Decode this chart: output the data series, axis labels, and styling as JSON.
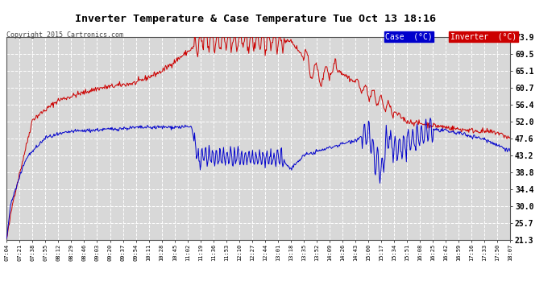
{
  "title": "Inverter Temperature & Case Temperature Tue Oct 13 18:16",
  "copyright": "Copyright 2015 Cartronics.com",
  "legend_case_label": "Case  (°C)",
  "legend_inv_label": "Inverter  (°C)",
  "case_color": "#0000cc",
  "inv_color": "#cc0000",
  "bg_color": "#ffffff",
  "plot_bg_color": "#d8d8d8",
  "grid_color": "#ffffff",
  "ylim": [
    21.3,
    73.9
  ],
  "yticks": [
    21.3,
    25.7,
    30.0,
    34.4,
    38.8,
    43.2,
    47.6,
    52.0,
    56.4,
    60.7,
    65.1,
    69.5,
    73.9
  ],
  "xtick_labels": [
    "07:04",
    "07:21",
    "07:38",
    "07:55",
    "08:12",
    "08:29",
    "08:46",
    "09:03",
    "09:20",
    "09:37",
    "09:54",
    "10:11",
    "10:28",
    "10:45",
    "11:02",
    "11:19",
    "11:36",
    "11:53",
    "12:10",
    "12:27",
    "12:44",
    "13:01",
    "13:18",
    "13:35",
    "13:52",
    "14:09",
    "14:26",
    "14:43",
    "15:00",
    "15:17",
    "15:34",
    "15:51",
    "16:08",
    "16:25",
    "16:42",
    "16:59",
    "17:16",
    "17:33",
    "17:50",
    "18:07"
  ]
}
